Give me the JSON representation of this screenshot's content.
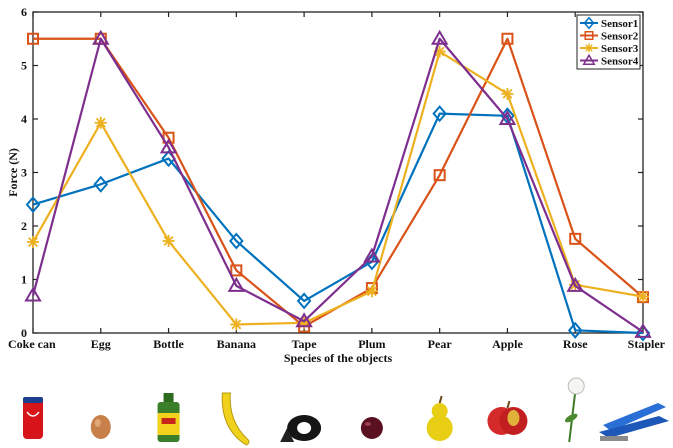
{
  "chart_data": {
    "type": "line",
    "xlabel": "Species of the objects",
    "ylabel": "Force (N)",
    "ylim": [
      0,
      6
    ],
    "yticks": [
      "0",
      "1",
      "2",
      "3",
      "4",
      "5",
      "6"
    ],
    "categories": [
      "Coke can",
      "Egg",
      "Bottle",
      "Banana",
      "Tape",
      "Plum",
      "Pear",
      "Apple",
      "Rose",
      "Stapler"
    ],
    "legend_position": "top-right",
    "grid": false,
    "series": [
      {
        "name": "Sensor1",
        "color": "#0072BD",
        "marker": "diamond",
        "values": [
          2.4,
          2.78,
          3.26,
          1.72,
          0.6,
          1.33,
          4.1,
          4.06,
          0.05,
          0.0
        ]
      },
      {
        "name": "Sensor2",
        "color": "#D95319",
        "marker": "square",
        "values": [
          5.5,
          5.5,
          3.65,
          1.17,
          0.12,
          0.84,
          2.95,
          5.5,
          1.76,
          0.67
        ]
      },
      {
        "name": "Sensor3",
        "color": "#EDB120",
        "marker": "asterisk",
        "values": [
          1.7,
          3.93,
          1.72,
          0.16,
          0.19,
          0.78,
          5.26,
          4.47,
          0.9,
          0.68
        ]
      },
      {
        "name": "Sensor4",
        "color": "#7E2F8E",
        "marker": "triangle",
        "values": [
          0.7,
          5.5,
          3.47,
          0.88,
          0.22,
          1.43,
          5.5,
          4.0,
          0.88,
          0.02
        ]
      }
    ],
    "objects": [
      {
        "name": "coke-can",
        "icon": "coke-can-icon"
      },
      {
        "name": "egg",
        "icon": "egg-icon"
      },
      {
        "name": "bottle",
        "icon": "bottle-icon"
      },
      {
        "name": "banana",
        "icon": "banana-icon"
      },
      {
        "name": "tape",
        "icon": "tape-icon"
      },
      {
        "name": "plum",
        "icon": "plum-icon"
      },
      {
        "name": "pear",
        "icon": "pear-icon"
      },
      {
        "name": "apple",
        "icon": "apple-icon"
      },
      {
        "name": "rose",
        "icon": "rose-icon"
      },
      {
        "name": "stapler",
        "icon": "stapler-icon"
      }
    ]
  }
}
